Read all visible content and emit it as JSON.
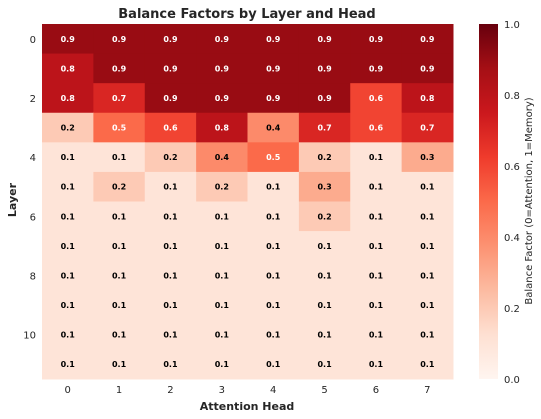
{
  "chart_data": {
    "type": "heatmap",
    "title": "Balance Factors by Layer and Head",
    "xlabel": "Attention Head",
    "ylabel": "Layer",
    "x_categories": [
      "0",
      "1",
      "2",
      "3",
      "4",
      "5",
      "6",
      "7"
    ],
    "y_categories": [
      "0",
      "1",
      "2",
      "3",
      "4",
      "5",
      "6",
      "7",
      "8",
      "9",
      "10",
      "11"
    ],
    "y_tick_labels": [
      "0",
      "",
      "2",
      "",
      "4",
      "",
      "6",
      "",
      "8",
      "",
      "10",
      ""
    ],
    "values": [
      [
        0.9,
        0.9,
        0.9,
        0.9,
        0.9,
        0.9,
        0.9,
        0.9
      ],
      [
        0.8,
        0.9,
        0.9,
        0.9,
        0.9,
        0.9,
        0.9,
        0.9
      ],
      [
        0.8,
        0.7,
        0.9,
        0.9,
        0.9,
        0.9,
        0.6,
        0.8
      ],
      [
        0.2,
        0.5,
        0.6,
        0.8,
        0.4,
        0.7,
        0.6,
        0.7
      ],
      [
        0.1,
        0.1,
        0.2,
        0.4,
        0.5,
        0.2,
        0.1,
        0.3
      ],
      [
        0.1,
        0.2,
        0.1,
        0.2,
        0.1,
        0.3,
        0.1,
        0.1
      ],
      [
        0.1,
        0.1,
        0.1,
        0.1,
        0.1,
        0.2,
        0.1,
        0.1
      ],
      [
        0.1,
        0.1,
        0.1,
        0.1,
        0.1,
        0.1,
        0.1,
        0.1
      ],
      [
        0.1,
        0.1,
        0.1,
        0.1,
        0.1,
        0.1,
        0.1,
        0.1
      ],
      [
        0.1,
        0.1,
        0.1,
        0.1,
        0.1,
        0.1,
        0.1,
        0.1
      ],
      [
        0.1,
        0.1,
        0.1,
        0.1,
        0.1,
        0.1,
        0.1,
        0.1
      ],
      [
        0.1,
        0.1,
        0.1,
        0.1,
        0.1,
        0.1,
        0.1,
        0.1
      ]
    ],
    "colorbar": {
      "label": "Balance Factor (0=Attention, 1=Memory)",
      "range": [
        0.0,
        1.0
      ],
      "ticks": [
        "0.0",
        "0.2",
        "0.4",
        "0.6",
        "0.8",
        "1.0"
      ],
      "colormap": "Reds"
    },
    "grid": false
  }
}
